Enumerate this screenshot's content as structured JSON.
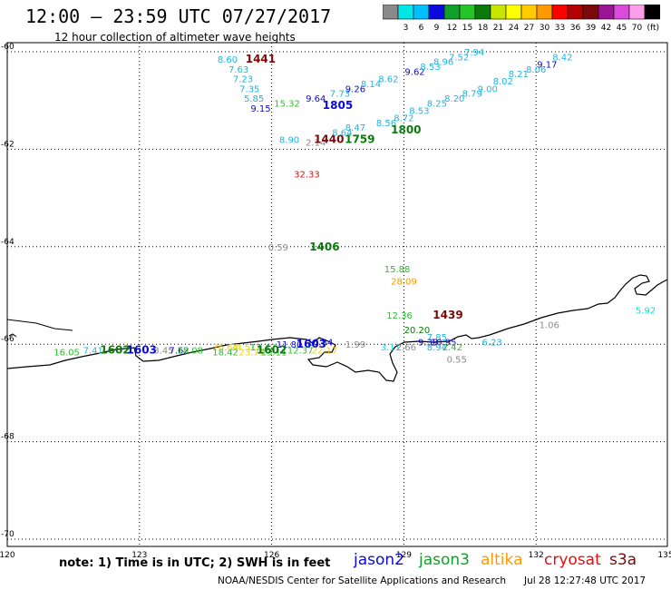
{
  "title": "12:00 – 23:59 UTC 07/27/2017",
  "subtitle": "12 hour collection of altimeter wave heights",
  "color_scale": {
    "unit_label": "(ft)",
    "bins": [
      {
        "label": "",
        "color": "#8a8a8a"
      },
      {
        "label": "3",
        "color": "#00e5e5"
      },
      {
        "label": "6",
        "color": "#00bfff"
      },
      {
        "label": "9",
        "color": "#0a0adc"
      },
      {
        "label": "12",
        "color": "#0f9f2a"
      },
      {
        "label": "15",
        "color": "#27c427"
      },
      {
        "label": "18",
        "color": "#0a7a0a"
      },
      {
        "label": "21",
        "color": "#c8e600"
      },
      {
        "label": "24",
        "color": "#ffff00"
      },
      {
        "label": "27",
        "color": "#ffcc00"
      },
      {
        "label": "30",
        "color": "#ff9900"
      },
      {
        "label": "33",
        "color": "#ff0000"
      },
      {
        "label": "36",
        "color": "#b30000"
      },
      {
        "label": "39",
        "color": "#7a0a0a"
      },
      {
        "label": "42",
        "color": "#9b1596"
      },
      {
        "label": "45",
        "color": "#d94cd9"
      },
      {
        "label": "70",
        "color": "#ff9ee8"
      },
      {
        "label": "",
        "color": "#000000"
      }
    ]
  },
  "map": {
    "lon_ticks": [
      "120",
      "123",
      "126",
      "129",
      "132",
      "135"
    ],
    "lat_ticks": [
      "-60",
      "-62",
      "-64",
      "-66",
      "-68",
      "-70"
    ]
  },
  "observations": [
    {
      "text": "8.60",
      "color": "#1fb5e0",
      "lon": 125.0,
      "lat": -60.15
    },
    {
      "text": "7.63",
      "color": "#1fb5e0",
      "lon": 125.25,
      "lat": -60.35
    },
    {
      "text": "7.23",
      "color": "#1fb5e0",
      "lon": 125.35,
      "lat": -60.55
    },
    {
      "text": "7.35",
      "color": "#1fb5e0",
      "lon": 125.5,
      "lat": -60.75
    },
    {
      "text": "5.85",
      "color": "#1fb5e0",
      "lon": 125.6,
      "lat": -60.95
    },
    {
      "text": "9.15",
      "color": "#0a0adc",
      "lon": 125.75,
      "lat": -61.15
    },
    {
      "text": "1441",
      "color": "#7a0a0a",
      "lon": 125.75,
      "lat": -60.15,
      "bold": true
    },
    {
      "text": "15.32",
      "color": "#27c427",
      "lon": 126.35,
      "lat": -61.05
    },
    {
      "text": "9.64",
      "color": "#0a0adc",
      "lon": 127.0,
      "lat": -60.95
    },
    {
      "text": "7.73",
      "color": "#1fb5e0",
      "lon": 127.55,
      "lat": -60.85
    },
    {
      "text": "9.26",
      "color": "#0a0adc",
      "lon": 127.9,
      "lat": -60.75
    },
    {
      "text": "1805",
      "color": "#0a0adc",
      "lon": 127.5,
      "lat": -61.1,
      "bold": true
    },
    {
      "text": "8.14",
      "color": "#1fb5e0",
      "lon": 128.25,
      "lat": -60.65
    },
    {
      "text": "8.62",
      "color": "#1fb5e0",
      "lon": 128.65,
      "lat": -60.55
    },
    {
      "text": "9.62",
      "color": "#0a0adc",
      "lon": 129.25,
      "lat": -60.4
    },
    {
      "text": "8.53",
      "color": "#1fb5e0",
      "lon": 129.6,
      "lat": -60.3
    },
    {
      "text": "8.96",
      "color": "#1fb5e0",
      "lon": 129.9,
      "lat": -60.2
    },
    {
      "text": "7.52",
      "color": "#1fb5e0",
      "lon": 130.25,
      "lat": -60.1
    },
    {
      "text": "7.94",
      "color": "#1fb5e0",
      "lon": 130.6,
      "lat": -60.0
    },
    {
      "text": "8.90",
      "color": "#1fb5e0",
      "lon": 126.4,
      "lat": -61.8
    },
    {
      "text": "2.14",
      "color": "#8a8a8a",
      "lon": 127.0,
      "lat": -61.85
    },
    {
      "text": "1440",
      "color": "#7a0a0a",
      "lon": 127.3,
      "lat": -61.8,
      "bold": true
    },
    {
      "text": "8.64",
      "color": "#1fb5e0",
      "lon": 127.6,
      "lat": -61.65
    },
    {
      "text": "8.47",
      "color": "#1fb5e0",
      "lon": 127.9,
      "lat": -61.55
    },
    {
      "text": "1759",
      "color": "#0a7a0a",
      "lon": 128.0,
      "lat": -61.8,
      "bold": true
    },
    {
      "text": "8.56",
      "color": "#1fb5e0",
      "lon": 128.6,
      "lat": -61.45
    },
    {
      "text": "8.72",
      "color": "#1fb5e0",
      "lon": 129.0,
      "lat": -61.35
    },
    {
      "text": "1800",
      "color": "#0a7a0a",
      "lon": 129.05,
      "lat": -61.6,
      "bold": true
    },
    {
      "text": "8.53",
      "color": "#1fb5e0",
      "lon": 129.35,
      "lat": -61.2
    },
    {
      "text": "8.25",
      "color": "#1fb5e0",
      "lon": 129.75,
      "lat": -61.05
    },
    {
      "text": "8.20",
      "color": "#1fb5e0",
      "lon": 130.15,
      "lat": -60.95
    },
    {
      "text": "8.79",
      "color": "#1fb5e0",
      "lon": 130.55,
      "lat": -60.85
    },
    {
      "text": "9.00",
      "color": "#1fb5e0",
      "lon": 130.9,
      "lat": -60.75
    },
    {
      "text": "8.02",
      "color": "#1fb5e0",
      "lon": 131.25,
      "lat": -60.6
    },
    {
      "text": "8.21",
      "color": "#1fb5e0",
      "lon": 131.6,
      "lat": -60.45
    },
    {
      "text": "8.06",
      "color": "#1fb5e0",
      "lon": 132.0,
      "lat": -60.35
    },
    {
      "text": "9.17",
      "color": "#0a0adc",
      "lon": 132.25,
      "lat": -60.25
    },
    {
      "text": "8.42",
      "color": "#1fb5e0",
      "lon": 132.6,
      "lat": -60.1
    },
    {
      "text": "32.33",
      "color": "#e01010",
      "lon": 126.8,
      "lat": -62.5
    },
    {
      "text": "0.59",
      "color": "#8a8a8a",
      "lon": 126.15,
      "lat": -64.0
    },
    {
      "text": "1406",
      "color": "#0a7a0a",
      "lon": 127.2,
      "lat": -64.0,
      "bold": true
    },
    {
      "text": "15.88",
      "color": "#27c427",
      "lon": 128.85,
      "lat": -64.45
    },
    {
      "text": "28.09",
      "color": "#ff9900",
      "lon": 129.0,
      "lat": -64.7
    },
    {
      "text": "12.36",
      "color": "#27c427",
      "lon": 128.9,
      "lat": -65.4
    },
    {
      "text": "1439",
      "color": "#7a0a0a",
      "lon": 130.0,
      "lat": -65.4,
      "bold": true
    },
    {
      "text": "20.20",
      "color": "#0a7a0a",
      "lon": 129.3,
      "lat": -65.7
    },
    {
      "text": "7.85",
      "color": "#1fb5e0",
      "lon": 129.75,
      "lat": -65.85
    },
    {
      "text": "9.39",
      "color": "#0a0adc",
      "lon": 129.55,
      "lat": -65.95
    },
    {
      "text": "10.95",
      "color": "#0a0adc",
      "lon": 129.9,
      "lat": -65.95
    },
    {
      "text": "8.94",
      "color": "#1fb5e0",
      "lon": 129.75,
      "lat": -66.05
    },
    {
      "text": "2.42",
      "color": "#27c427",
      "lon": 130.1,
      "lat": -66.05
    },
    {
      "text": "6.23",
      "color": "#1fb5e0",
      "lon": 131.0,
      "lat": -65.95
    },
    {
      "text": "1.06",
      "color": "#8a8a8a",
      "lon": 132.3,
      "lat": -65.6
    },
    {
      "text": "5.92",
      "color": "#00e5e5",
      "lon": 134.75,
      "lat": -65.3
    },
    {
      "text": "1.99",
      "color": "#8a8a8a",
      "lon": 127.9,
      "lat": -66.0
    },
    {
      "text": "3.11",
      "color": "#00e5e5",
      "lon": 128.7,
      "lat": -66.05
    },
    {
      "text": "2.66",
      "color": "#8a8a8a",
      "lon": 129.05,
      "lat": -66.05
    },
    {
      "text": "0.55",
      "color": "#8a8a8a",
      "lon": 130.2,
      "lat": -66.3
    },
    {
      "text": "16.05",
      "color": "#27c427",
      "lon": 121.35,
      "lat": -66.15
    },
    {
      "text": "7.41",
      "color": "#1fb5e0",
      "lon": 121.95,
      "lat": -66.12
    },
    {
      "text": "1602",
      "color": "#0a7a0a",
      "lon": 122.45,
      "lat": -66.12,
      "bold": true
    },
    {
      "text": "1603",
      "color": "#0a0adc",
      "lon": 123.05,
      "lat": -66.12,
      "bold": true
    },
    {
      "text": "3.45",
      "color": "#8a8a8a",
      "lon": 123.55,
      "lat": -66.12
    },
    {
      "text": "7.62",
      "color": "#0a0adc",
      "lon": 123.9,
      "lat": -66.12
    },
    {
      "text": "18.08",
      "color": "#27c427",
      "lon": 124.15,
      "lat": -66.12
    },
    {
      "text": "26.64",
      "color": "#ffcc00",
      "lon": 124.95,
      "lat": -66.05
    },
    {
      "text": "18.42",
      "color": "#27c427",
      "lon": 124.95,
      "lat": -66.15
    },
    {
      "text": "24.51",
      "color": "#c8e600",
      "lon": 125.35,
      "lat": -66.05
    },
    {
      "text": "23.71",
      "color": "#ffcc00",
      "lon": 125.55,
      "lat": -66.15
    },
    {
      "text": "17.42",
      "color": "#27c427",
      "lon": 125.8,
      "lat": -66.05
    },
    {
      "text": "13.11",
      "color": "#27c427",
      "lon": 126.05,
      "lat": -66.15
    },
    {
      "text": "11.80",
      "color": "#0a0adc",
      "lon": 126.4,
      "lat": -66.0
    },
    {
      "text": "1602",
      "color": "#0a7a0a",
      "lon": 126.0,
      "lat": -66.12,
      "bold": true
    },
    {
      "text": "1603",
      "color": "#0a0adc",
      "lon": 126.9,
      "lat": -66.0,
      "bold": true
    },
    {
      "text": "10.84",
      "color": "#0a0adc",
      "lon": 127.1,
      "lat": -65.95
    },
    {
      "text": "12.37",
      "color": "#27c427",
      "lon": 126.65,
      "lat": -66.12
    },
    {
      "text": "22.17",
      "color": "#ffcc00",
      "lon": 127.2,
      "lat": -66.12
    }
  ],
  "note": "note: 1) Time is in UTC; 2) SWH is in feet",
  "legend": [
    {
      "label": "jason2",
      "color": "#0a0adc"
    },
    {
      "label": "jason3",
      "color": "#0f9f2a"
    },
    {
      "label": "altika",
      "color": "#ff9900"
    },
    {
      "label": "cryosat",
      "color": "#e01010"
    },
    {
      "label": "s3a",
      "color": "#7a0a0a"
    }
  ],
  "credit": "NOAA/NESDIS Center for Satellite Applications and Research",
  "timestamp": "Jul 28 12:27:48 UTC 2017"
}
